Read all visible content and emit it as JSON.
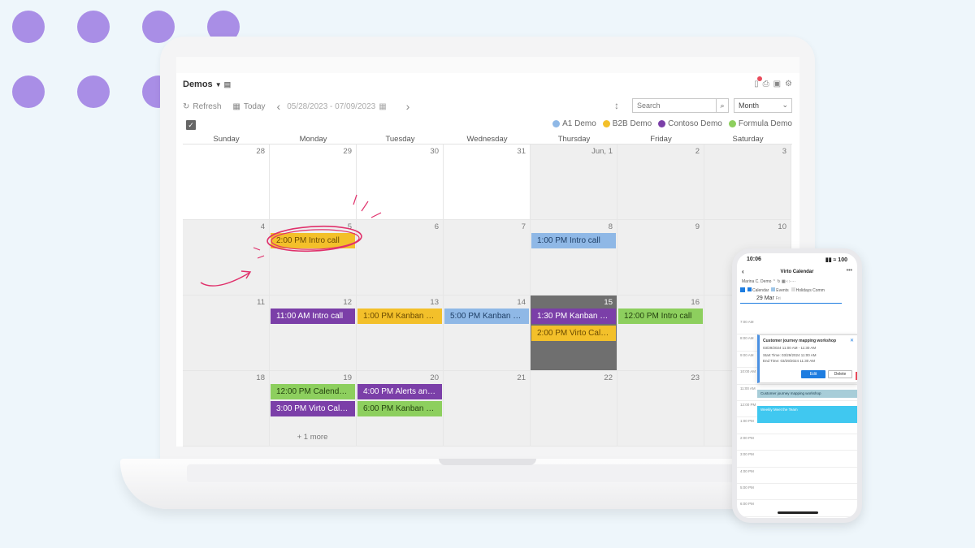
{
  "app": {
    "title": "Demos",
    "toolbar": {
      "refresh": "Refresh",
      "today": "Today",
      "date_range": "05/28/2023 - 07/09/2023",
      "search_placeholder": "Search",
      "view": "Month"
    },
    "legend": [
      {
        "label": "A1 Demo",
        "color": "#8fb8e6"
      },
      {
        "label": "B2B Demo",
        "color": "#f3c02a"
      },
      {
        "label": "Contoso Demo",
        "color": "#7b3fa8"
      },
      {
        "label": "Formula Demo",
        "color": "#8dcf5e"
      }
    ],
    "weekdays": [
      "Sunday",
      "Monday",
      "Tuesday",
      "Wednesday",
      "Thursday",
      "Friday",
      "Saturday"
    ],
    "weeks": [
      {
        "days": [
          {
            "num": "28",
            "bg": "white",
            "events": []
          },
          {
            "num": "29",
            "bg": "white",
            "events": []
          },
          {
            "num": "30",
            "bg": "white",
            "events": []
          },
          {
            "num": "31",
            "bg": "white",
            "events": []
          },
          {
            "num": "Jun, 1",
            "bg": "gray",
            "events": []
          },
          {
            "num": "2",
            "bg": "gray",
            "events": []
          },
          {
            "num": "3",
            "bg": "gray",
            "events": []
          }
        ]
      },
      {
        "days": [
          {
            "num": "4",
            "bg": "gray",
            "events": []
          },
          {
            "num": "5",
            "bg": "gray",
            "events": [
              {
                "label": "2:00 PM Intro call",
                "color": "#f3c02a"
              }
            ]
          },
          {
            "num": "6",
            "bg": "gray",
            "events": []
          },
          {
            "num": "7",
            "bg": "gray",
            "events": []
          },
          {
            "num": "8",
            "bg": "gray",
            "events": [
              {
                "label": "1:00 PM Intro call",
                "color": "#8fb8e6"
              }
            ]
          },
          {
            "num": "9",
            "bg": "gray",
            "events": []
          },
          {
            "num": "10",
            "bg": "gray",
            "events": []
          }
        ]
      },
      {
        "days": [
          {
            "num": "11",
            "bg": "gray",
            "events": []
          },
          {
            "num": "12",
            "bg": "gray",
            "events": [
              {
                "label": "11:00 AM Intro call",
                "color": "#7b3fa8"
              }
            ]
          },
          {
            "num": "13",
            "bg": "gray",
            "events": [
              {
                "label": "1:00 PM Kanban Bo...",
                "color": "#f3c02a"
              }
            ]
          },
          {
            "num": "14",
            "bg": "gray",
            "events": [
              {
                "label": "5:00 PM Kanban B...",
                "color": "#8fb8e6"
              }
            ]
          },
          {
            "num": "15",
            "bg": "dark",
            "events": [
              {
                "label": "1:30 PM Kanban Bo...",
                "color": "#7b3fa8"
              },
              {
                "label": "2:00 PM Virto Cale...",
                "color": "#f3c02a"
              }
            ]
          },
          {
            "num": "16",
            "bg": "gray",
            "events": [
              {
                "label": "12:00 PM Intro call",
                "color": "#8dcf5e"
              }
            ]
          },
          {
            "num": "17",
            "bg": "gray",
            "events": []
          }
        ]
      },
      {
        "days": [
          {
            "num": "18",
            "bg": "gray",
            "events": []
          },
          {
            "num": "19",
            "bg": "gray",
            "events": [
              {
                "label": "12:00 PM Calendar ...",
                "color": "#8dcf5e"
              },
              {
                "label": "3:00 PM Virto Cale...",
                "color": "#7b3fa8"
              }
            ],
            "more": "+ 1 more"
          },
          {
            "num": "20",
            "bg": "gray",
            "events": [
              {
                "label": "4:00 PM Alerts and...",
                "color": "#7b3fa8"
              },
              {
                "label": "6:00 PM Kanban B...",
                "color": "#8dcf5e"
              }
            ]
          },
          {
            "num": "21",
            "bg": "gray",
            "events": []
          },
          {
            "num": "22",
            "bg": "gray",
            "events": []
          },
          {
            "num": "23",
            "bg": "gray",
            "events": []
          },
          {
            "num": "",
            "bg": "gray",
            "events": []
          }
        ]
      }
    ]
  },
  "phone": {
    "time": "10:06",
    "signal": "▮▮ ≈ 100",
    "title": "Virto Calendar",
    "toolbar": "Marina C. Demo  ⌃  ↻  ▦  ‹  ›  ···",
    "legend": [
      {
        "label": "Calendar",
        "color": "#1e7de0"
      },
      {
        "label": "Events",
        "color": "#9ec6e8"
      },
      {
        "label": "Holidays Comm",
        "color": "#ddd"
      }
    ],
    "date": "29 Mar",
    "date_sub": "Fri",
    "hours": [
      "7:00 AM",
      "8:00 AM",
      "9:00 AM",
      "10:00 AM",
      "11:00 AM",
      "12:00 PM",
      "1:00 PM",
      "2:00 PM",
      "3:00 PM",
      "4:00 PM",
      "5:00 PM",
      "6:00 PM"
    ],
    "popup": {
      "title": "Customer journey mapping workshop",
      "when": "03/29/2024  11:00 AM  -  11:30 AM",
      "start": "Start Time:   03/29/2024 11:00 AM",
      "end": "End Time:     03/29/2024 11:30 AM",
      "edit": "Edit",
      "delete": "Delete"
    },
    "event1": "Customer journey mapping workshop",
    "event2": "Weekly Meet the Team"
  }
}
